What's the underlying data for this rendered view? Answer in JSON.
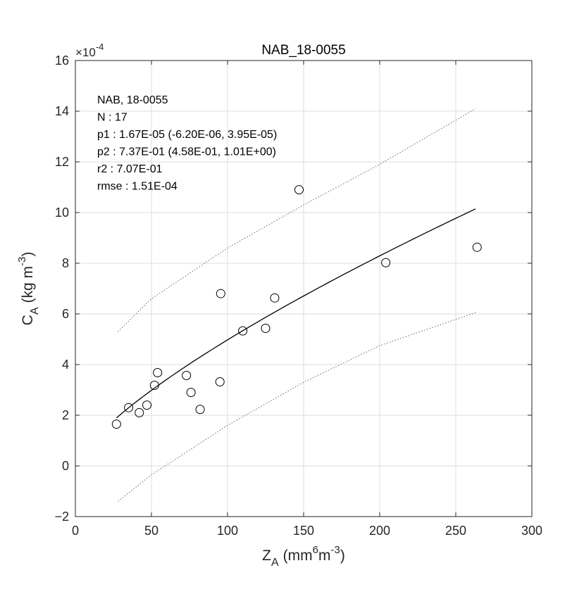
{
  "chart_data": {
    "type": "scatter",
    "title": "NAB_18-0055",
    "xlabel": {
      "base": "Z",
      "sub": "A",
      "unit_pre": "(mm",
      "unit_sup": "6",
      "unit_mid": "m",
      "unit_sup2": "-3",
      "unit_post": ")"
    },
    "ylabel": {
      "base": "C",
      "sub": "A",
      "unit_pre": "(kg m",
      "unit_sup": "-3",
      "unit_post": ")"
    },
    "y_exponent": {
      "prefix": "×10",
      "power": "-4"
    },
    "xlim": [
      0,
      300
    ],
    "ylim": [
      -2,
      16
    ],
    "x_ticks": [
      0,
      50,
      100,
      150,
      200,
      250,
      300
    ],
    "y_ticks": [
      -2,
      0,
      2,
      4,
      6,
      8,
      10,
      12,
      14,
      16
    ],
    "x_tick_labels": [
      "0",
      "50",
      "100",
      "150",
      "200",
      "250",
      "300"
    ],
    "y_tick_labels": [
      "−2",
      "0",
      "2",
      "4",
      "6",
      "8",
      "10",
      "12",
      "14",
      "16"
    ],
    "grid": true,
    "points": [
      {
        "x": 27,
        "y": 1.65
      },
      {
        "x": 35,
        "y": 2.3
      },
      {
        "x": 42,
        "y": 2.1
      },
      {
        "x": 47,
        "y": 2.4
      },
      {
        "x": 52,
        "y": 3.18
      },
      {
        "x": 54,
        "y": 3.68
      },
      {
        "x": 73,
        "y": 3.57
      },
      {
        "x": 76,
        "y": 2.9
      },
      {
        "x": 82,
        "y": 2.23
      },
      {
        "x": 95,
        "y": 3.32
      },
      {
        "x": 95.5,
        "y": 6.8
      },
      {
        "x": 110,
        "y": 5.33
      },
      {
        "x": 125,
        "y": 5.43
      },
      {
        "x": 131,
        "y": 6.63
      },
      {
        "x": 147,
        "y": 10.9
      },
      {
        "x": 204,
        "y": 8.02
      },
      {
        "x": 264,
        "y": 8.63
      }
    ],
    "fit": {
      "p1": 0.167,
      "p2": 0.737,
      "x_range": [
        27,
        263
      ],
      "y_units_note": "y in units of 1e-4"
    },
    "bounds": {
      "upper": [
        {
          "x": 28,
          "y": 5.3
        },
        {
          "x": 50,
          "y": 6.6
        },
        {
          "x": 100,
          "y": 8.6
        },
        {
          "x": 150,
          "y": 10.3
        },
        {
          "x": 200,
          "y": 11.9
        },
        {
          "x": 263,
          "y": 14.1
        }
      ],
      "lower": [
        {
          "x": 28,
          "y": -1.4
        },
        {
          "x": 50,
          "y": -0.35
        },
        {
          "x": 100,
          "y": 1.6
        },
        {
          "x": 150,
          "y": 3.3
        },
        {
          "x": 200,
          "y": 4.75
        },
        {
          "x": 263,
          "y": 6.05
        }
      ]
    },
    "annotation_lines": [
      "NAB, 18-0055",
      "N    : 17",
      "p1   : 1.67E-05 (-6.20E-06, 3.95E-05)",
      "p2   : 7.37E-01 (4.58E-01, 1.01E+00)",
      "r2   : 7.07E-01",
      "rmse : 1.51E-04"
    ],
    "colors": {
      "points": "#000000",
      "fit": "#000000",
      "bounds": "#666666",
      "grid": "#dcdcdc",
      "axes": "#262626"
    }
  }
}
